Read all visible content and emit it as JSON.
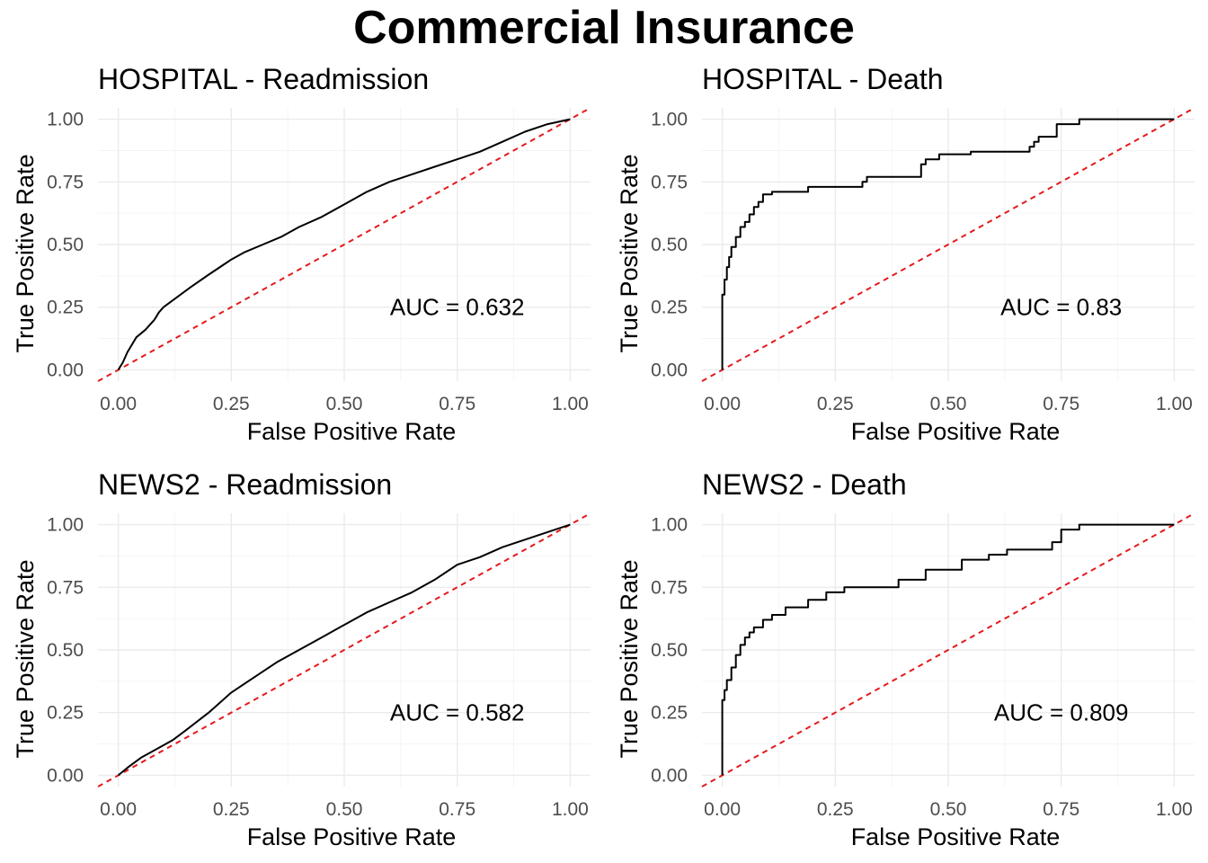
{
  "title": "Commercial Insurance",
  "chart_data": [
    {
      "type": "line",
      "title": "HOSPITAL - Readmission",
      "xlabel": "False Positive Rate",
      "ylabel": "True Positive Rate",
      "xlim": [
        0,
        1
      ],
      "ylim": [
        0,
        1
      ],
      "xticks": [
        "0.00",
        "0.25",
        "0.50",
        "0.75",
        "1.00"
      ],
      "yticks": [
        "0.00",
        "0.25",
        "0.50",
        "0.75",
        "1.00"
      ],
      "grid": true,
      "annotation": "AUC = 0.632",
      "reference_line": {
        "x": [
          0,
          1
        ],
        "y": [
          0,
          1
        ],
        "color": "#e41a1c"
      },
      "series": [
        {
          "color": "#000000",
          "x": [
            0,
            0.01,
            0.02,
            0.04,
            0.06,
            0.08,
            0.09,
            0.1,
            0.13,
            0.16,
            0.2,
            0.25,
            0.28,
            0.32,
            0.36,
            0.4,
            0.45,
            0.5,
            0.55,
            0.6,
            0.65,
            0.7,
            0.75,
            0.8,
            0.85,
            0.9,
            0.95,
            1.0
          ],
          "y": [
            0,
            0.03,
            0.07,
            0.13,
            0.16,
            0.2,
            0.23,
            0.25,
            0.29,
            0.33,
            0.38,
            0.44,
            0.47,
            0.5,
            0.53,
            0.57,
            0.61,
            0.66,
            0.71,
            0.75,
            0.78,
            0.81,
            0.84,
            0.87,
            0.91,
            0.95,
            0.98,
            1.0
          ]
        }
      ]
    },
    {
      "type": "line",
      "title": "HOSPITAL - Death",
      "xlabel": "False Positive Rate",
      "ylabel": "True Positive Rate",
      "xlim": [
        0,
        1
      ],
      "ylim": [
        0,
        1
      ],
      "xticks": [
        "0.00",
        "0.25",
        "0.50",
        "0.75",
        "1.00"
      ],
      "yticks": [
        "0.00",
        "0.25",
        "0.50",
        "0.75",
        "1.00"
      ],
      "grid": true,
      "annotation": "AUC = 0.83",
      "reference_line": {
        "x": [
          0,
          1
        ],
        "y": [
          0,
          1
        ],
        "color": "#e41a1c"
      },
      "series": [
        {
          "color": "#000000",
          "x": [
            0,
            0,
            0.005,
            0.005,
            0.01,
            0.01,
            0.015,
            0.015,
            0.02,
            0.02,
            0.03,
            0.03,
            0.04,
            0.04,
            0.05,
            0.05,
            0.06,
            0.06,
            0.07,
            0.07,
            0.08,
            0.08,
            0.09,
            0.09,
            0.11,
            0.11,
            0.19,
            0.19,
            0.31,
            0.31,
            0.32,
            0.32,
            0.44,
            0.44,
            0.45,
            0.45,
            0.48,
            0.48,
            0.55,
            0.55,
            0.68,
            0.68,
            0.69,
            0.69,
            0.7,
            0.7,
            0.74,
            0.74,
            0.79,
            0.79,
            1.0
          ],
          "y": [
            0,
            0.3,
            0.3,
            0.36,
            0.36,
            0.41,
            0.41,
            0.45,
            0.45,
            0.49,
            0.49,
            0.53,
            0.53,
            0.57,
            0.57,
            0.59,
            0.59,
            0.62,
            0.62,
            0.65,
            0.65,
            0.67,
            0.67,
            0.7,
            0.7,
            0.71,
            0.71,
            0.73,
            0.73,
            0.75,
            0.75,
            0.77,
            0.77,
            0.82,
            0.82,
            0.84,
            0.84,
            0.86,
            0.86,
            0.87,
            0.87,
            0.89,
            0.89,
            0.91,
            0.91,
            0.93,
            0.93,
            0.98,
            0.98,
            1.0,
            1.0
          ]
        }
      ]
    },
    {
      "type": "line",
      "title": "NEWS2 - Readmission",
      "xlabel": "False Positive Rate",
      "ylabel": "True Positive Rate",
      "xlim": [
        0,
        1
      ],
      "ylim": [
        0,
        1
      ],
      "xticks": [
        "0.00",
        "0.25",
        "0.50",
        "0.75",
        "1.00"
      ],
      "yticks": [
        "0.00",
        "0.25",
        "0.50",
        "0.75",
        "1.00"
      ],
      "grid": true,
      "annotation": "AUC = 0.582",
      "reference_line": {
        "x": [
          0,
          1
        ],
        "y": [
          0,
          1
        ],
        "color": "#e41a1c"
      },
      "series": [
        {
          "color": "#000000",
          "x": [
            0,
            0.02,
            0.05,
            0.08,
            0.12,
            0.15,
            0.2,
            0.25,
            0.3,
            0.35,
            0.4,
            0.45,
            0.5,
            0.55,
            0.6,
            0.65,
            0.7,
            0.75,
            0.8,
            0.85,
            0.9,
            0.95,
            1.0
          ],
          "y": [
            0,
            0.03,
            0.07,
            0.1,
            0.14,
            0.18,
            0.25,
            0.33,
            0.39,
            0.45,
            0.5,
            0.55,
            0.6,
            0.65,
            0.69,
            0.73,
            0.78,
            0.84,
            0.87,
            0.91,
            0.94,
            0.97,
            1.0
          ]
        }
      ]
    },
    {
      "type": "line",
      "title": "NEWS2 - Death",
      "xlabel": "False Positive Rate",
      "ylabel": "True Positive Rate",
      "xlim": [
        0,
        1
      ],
      "ylim": [
        0,
        1
      ],
      "xticks": [
        "0.00",
        "0.25",
        "0.50",
        "0.75",
        "1.00"
      ],
      "yticks": [
        "0.00",
        "0.25",
        "0.50",
        "0.75",
        "1.00"
      ],
      "grid": true,
      "annotation": "AUC = 0.809",
      "reference_line": {
        "x": [
          0,
          1
        ],
        "y": [
          0,
          1
        ],
        "color": "#e41a1c"
      },
      "series": [
        {
          "color": "#000000",
          "x": [
            0,
            0,
            0.005,
            0.005,
            0.01,
            0.01,
            0.02,
            0.02,
            0.03,
            0.03,
            0.04,
            0.04,
            0.05,
            0.05,
            0.06,
            0.06,
            0.07,
            0.07,
            0.09,
            0.09,
            0.11,
            0.11,
            0.14,
            0.14,
            0.19,
            0.19,
            0.23,
            0.23,
            0.27,
            0.27,
            0.39,
            0.39,
            0.45,
            0.45,
            0.53,
            0.53,
            0.59,
            0.59,
            0.63,
            0.63,
            0.73,
            0.73,
            0.75,
            0.75,
            0.79,
            0.79,
            1.0
          ],
          "y": [
            0,
            0.3,
            0.3,
            0.34,
            0.34,
            0.38,
            0.38,
            0.43,
            0.43,
            0.48,
            0.48,
            0.52,
            0.52,
            0.55,
            0.55,
            0.57,
            0.57,
            0.59,
            0.59,
            0.62,
            0.62,
            0.64,
            0.64,
            0.67,
            0.67,
            0.7,
            0.7,
            0.73,
            0.73,
            0.75,
            0.75,
            0.78,
            0.78,
            0.82,
            0.82,
            0.86,
            0.86,
            0.88,
            0.88,
            0.9,
            0.9,
            0.93,
            0.93,
            0.98,
            0.98,
            1.0,
            1.0
          ]
        }
      ]
    }
  ]
}
